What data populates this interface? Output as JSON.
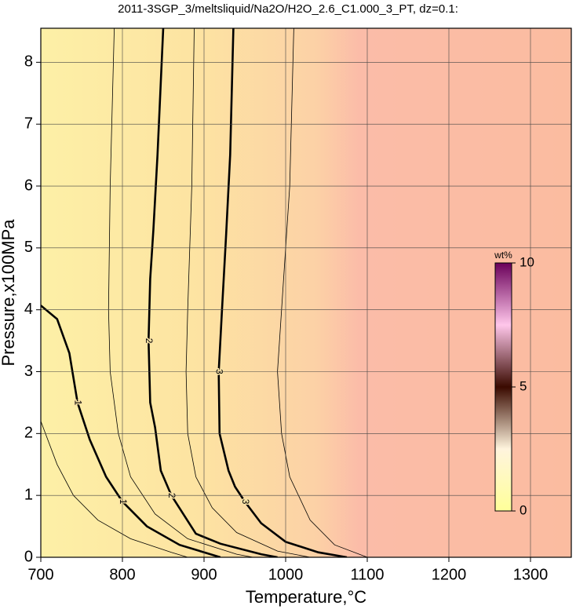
{
  "chart_data": {
    "type": "contour",
    "title": "2011-3SGP_3/meltsliquid/Na2O/H2O_2.6_C1.000_3_PT, dz=0.1:",
    "x_label": "Temperature,°C",
    "y_label": "Pressure,x100MPa",
    "xlim": [
      700,
      1350
    ],
    "xticks": [
      700,
      800,
      900,
      1000,
      1100,
      1200,
      1300
    ],
    "ylim": [
      0,
      8.55
    ],
    "yticks": [
      0,
      1,
      2,
      3,
      4,
      5,
      6,
      7,
      8
    ],
    "grid": true,
    "contours": [
      {
        "level": 1,
        "t": [
          700,
          720,
          735,
          745,
          760,
          780,
          800,
          830,
          870,
          920
        ],
        "p": [
          4.07,
          3.85,
          3.3,
          2.5,
          1.9,
          1.3,
          0.9,
          0.5,
          0.2,
          0
        ]
      },
      {
        "level": 2,
        "t": [
          850,
          843,
          838,
          834,
          832,
          834,
          840,
          847,
          860,
          890,
          920,
          970,
          990
        ],
        "p": [
          8.55,
          6.5,
          5.3,
          4.5,
          3.5,
          2.5,
          2.1,
          1.4,
          1.0,
          0.38,
          0.22,
          0.05,
          0
        ]
      },
      {
        "level": 3,
        "t": [
          936,
          932,
          927,
          922,
          918,
          919,
          930,
          938,
          950,
          970,
          1000,
          1040,
          1075
        ],
        "p": [
          8.55,
          6.5,
          5.2,
          4,
          3,
          2,
          1.4,
          1.14,
          0.9,
          0.55,
          0.25,
          0.08,
          0
        ]
      },
      {
        "level": 0.5,
        "t": [
          700,
          720,
          740,
          770,
          810,
          860,
          880
        ],
        "p": [
          2.2,
          1.5,
          1.0,
          0.6,
          0.3,
          0.08,
          0
        ]
      },
      {
        "level": 1.5,
        "t": [
          790,
          785,
          783,
          785,
          795,
          810,
          840,
          880,
          940,
          960
        ],
        "p": [
          8.55,
          6,
          4,
          3,
          2,
          1.3,
          0.7,
          0.3,
          0.05,
          0
        ]
      },
      {
        "level": 2.5,
        "t": [
          888,
          885,
          880,
          878,
          880,
          890,
          910,
          940,
          990,
          1030
        ],
        "p": [
          8.55,
          6,
          4,
          3,
          2,
          1.3,
          0.8,
          0.4,
          0.1,
          0
        ]
      },
      {
        "level": 3.5,
        "t": [
          1010,
          1005,
          995,
          990,
          995,
          1005,
          1030,
          1060,
          1100
        ],
        "p": [
          8.55,
          6,
          4,
          3,
          2,
          1.3,
          0.6,
          0.2,
          0
        ]
      }
    ],
    "colorbar": {
      "label": "wt%",
      "lim": [
        0,
        10
      ],
      "ticks": [
        0,
        5,
        10
      ],
      "colors": [
        "#ffff99",
        "#fff4dd",
        "#3a0a00",
        "#ffc6ea",
        "#6a005a"
      ]
    }
  }
}
